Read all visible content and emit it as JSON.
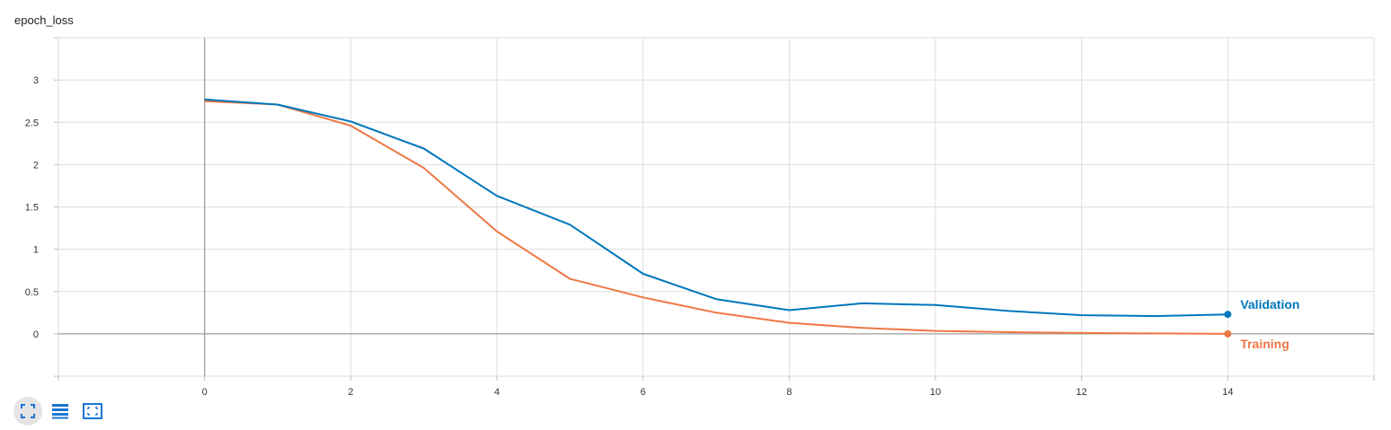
{
  "card": {
    "title": "epoch_loss"
  },
  "toolbar": {
    "buttons": [
      {
        "name": "fit-domain-button",
        "icon": "expand-corners-icon",
        "active": true
      },
      {
        "name": "toggle-log-scale-button",
        "icon": "list-lines-icon",
        "active": false
      },
      {
        "name": "zoom-select-button",
        "icon": "dashed-select-icon",
        "active": false
      }
    ],
    "icon_color": "#1976d2"
  },
  "chart_data": {
    "type": "line",
    "title": "epoch_loss",
    "xlabel": "",
    "ylabel": "",
    "xlim": [
      -2,
      16
    ],
    "ylim": [
      -0.5,
      3.5
    ],
    "x_ticks": [
      0,
      2,
      4,
      6,
      8,
      10,
      12,
      14
    ],
    "y_ticks": [
      0,
      0.5,
      1,
      1.5,
      2,
      2.5,
      3
    ],
    "y_tick_labels": [
      "0",
      "0.5",
      "1",
      "1.5",
      "2",
      "2.5",
      "3"
    ],
    "grid": true,
    "legend": "end-of-line labels",
    "x": [
      0,
      1,
      2,
      3,
      4,
      5,
      6,
      7,
      8,
      9,
      10,
      11,
      12,
      13,
      14
    ],
    "series": [
      {
        "name": "Validation",
        "color": "#0077bb",
        "values": [
          2.77,
          2.71,
          2.51,
          2.19,
          1.63,
          1.29,
          0.71,
          0.41,
          0.28,
          0.36,
          0.34,
          0.27,
          0.22,
          0.21,
          0.23
        ]
      },
      {
        "name": "Training",
        "color": "#ee7744",
        "values": [
          2.75,
          2.71,
          2.46,
          1.96,
          1.21,
          0.65,
          0.43,
          0.25,
          0.13,
          0.07,
          0.035,
          0.02,
          0.01,
          0.005,
          0.0
        ]
      }
    ]
  }
}
